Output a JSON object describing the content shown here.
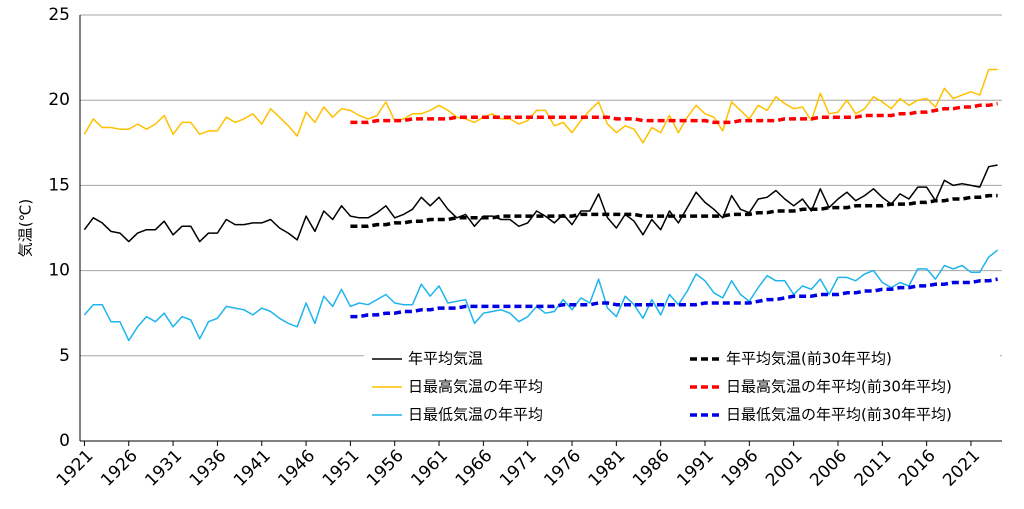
{
  "chart_data": {
    "type": "line",
    "y_label": "気温(℃)",
    "x": [
      1921,
      1922,
      1923,
      1924,
      1925,
      1926,
      1927,
      1928,
      1929,
      1930,
      1931,
      1932,
      1933,
      1934,
      1935,
      1936,
      1937,
      1938,
      1939,
      1940,
      1941,
      1942,
      1943,
      1944,
      1945,
      1946,
      1947,
      1948,
      1949,
      1950,
      1951,
      1952,
      1953,
      1954,
      1955,
      1956,
      1957,
      1958,
      1959,
      1960,
      1961,
      1962,
      1963,
      1964,
      1965,
      1966,
      1967,
      1968,
      1969,
      1970,
      1971,
      1972,
      1973,
      1974,
      1975,
      1976,
      1977,
      1978,
      1979,
      1980,
      1981,
      1982,
      1983,
      1984,
      1985,
      1986,
      1987,
      1988,
      1989,
      1990,
      1991,
      1992,
      1993,
      1994,
      1995,
      1996,
      1997,
      1998,
      1999,
      2000,
      2001,
      2002,
      2003,
      2004,
      2005,
      2006,
      2007,
      2008,
      2009,
      2010,
      2011,
      2012,
      2013,
      2014,
      2015,
      2016,
      2017,
      2018,
      2019,
      2020,
      2021,
      2022,
      2023,
      2024
    ],
    "xlim": [
      1920.5,
      2024.5
    ],
    "xticks": [
      1921,
      1926,
      1931,
      1936,
      1941,
      1946,
      1951,
      1956,
      1961,
      1966,
      1971,
      1976,
      1981,
      1986,
      1991,
      1996,
      2001,
      2006,
      2011,
      2016,
      2021
    ],
    "ylim": [
      0,
      25
    ],
    "yticks": [
      0,
      5,
      10,
      15,
      20,
      25
    ],
    "grid": true,
    "legend": "lower right",
    "series": [
      {
        "name": "年平均気温",
        "color": "#000000",
        "dashed": false,
        "values": [
          12.4,
          13.1,
          12.8,
          12.3,
          12.2,
          11.7,
          12.2,
          12.4,
          12.4,
          12.9,
          12.1,
          12.6,
          12.6,
          11.7,
          12.2,
          12.2,
          13.0,
          12.7,
          12.7,
          12.8,
          12.8,
          13.0,
          12.5,
          12.2,
          11.8,
          13.2,
          12.3,
          13.5,
          13.0,
          13.8,
          13.2,
          13.1,
          13.1,
          13.4,
          13.8,
          13.1,
          13.3,
          13.6,
          14.3,
          13.8,
          14.3,
          13.6,
          13.1,
          13.3,
          12.6,
          13.2,
          13.2,
          13.0,
          13.0,
          12.6,
          12.8,
          13.5,
          13.2,
          12.8,
          13.3,
          12.7,
          13.5,
          13.5,
          14.5,
          13.1,
          12.5,
          13.3,
          12.9,
          12.1,
          13.0,
          12.4,
          13.5,
          12.8,
          13.7,
          14.6,
          14.0,
          13.6,
          13.1,
          14.4,
          13.6,
          13.4,
          14.2,
          14.3,
          14.7,
          14.2,
          13.8,
          14.2,
          13.5,
          14.8,
          13.7,
          14.2,
          14.6,
          14.1,
          14.4,
          14.8,
          14.3,
          13.9,
          14.5,
          14.2,
          14.9,
          14.9,
          14.1,
          15.3,
          15.0,
          15.1,
          15.0,
          14.9,
          16.1,
          16.2
        ]
      },
      {
        "name": "日最高気温の年平均",
        "color": "#ffc000",
        "dashed": false,
        "values": [
          18.0,
          18.9,
          18.4,
          18.4,
          18.3,
          18.3,
          18.6,
          18.3,
          18.6,
          19.1,
          18.0,
          18.7,
          18.7,
          18.0,
          18.2,
          18.2,
          19.0,
          18.7,
          18.9,
          19.2,
          18.6,
          19.5,
          19.0,
          18.5,
          17.9,
          19.3,
          18.7,
          19.6,
          19.0,
          19.5,
          19.4,
          19.1,
          18.9,
          19.1,
          19.9,
          18.8,
          18.9,
          19.2,
          19.2,
          19.4,
          19.7,
          19.4,
          19.0,
          18.9,
          18.7,
          19.0,
          19.2,
          18.9,
          18.9,
          18.6,
          18.8,
          19.4,
          19.4,
          18.5,
          18.7,
          18.1,
          18.8,
          19.4,
          19.9,
          18.6,
          18.1,
          18.5,
          18.3,
          17.5,
          18.4,
          18.1,
          19.1,
          18.1,
          19.0,
          19.7,
          19.2,
          19.0,
          18.2,
          19.9,
          19.4,
          18.9,
          19.7,
          19.4,
          20.2,
          19.8,
          19.5,
          19.6,
          18.8,
          20.4,
          19.2,
          19.3,
          20.0,
          19.2,
          19.5,
          20.2,
          19.9,
          19.5,
          20.1,
          19.7,
          20.0,
          20.1,
          19.6,
          20.7,
          20.1,
          20.3,
          20.5,
          20.3,
          21.8,
          21.8
        ]
      },
      {
        "name": "日最低気温の年平均",
        "color": "#1fb4ec",
        "dashed": false,
        "values": [
          7.4,
          8.0,
          8.0,
          7.0,
          7.0,
          5.9,
          6.7,
          7.3,
          7.0,
          7.5,
          6.7,
          7.3,
          7.1,
          6.0,
          7.0,
          7.2,
          7.9,
          7.8,
          7.7,
          7.4,
          7.8,
          7.6,
          7.2,
          6.9,
          6.7,
          8.1,
          6.9,
          8.5,
          7.9,
          8.9,
          7.9,
          8.1,
          8.0,
          8.3,
          8.6,
          8.1,
          8.0,
          8.0,
          9.2,
          8.5,
          9.1,
          8.1,
          8.2,
          8.3,
          6.9,
          7.5,
          7.6,
          7.7,
          7.5,
          7.0,
          7.3,
          7.9,
          7.5,
          7.6,
          8.3,
          7.7,
          8.4,
          8.1,
          9.5,
          7.8,
          7.3,
          8.5,
          8.0,
          7.2,
          8.3,
          7.4,
          8.6,
          8.0,
          8.8,
          9.8,
          9.4,
          8.7,
          8.4,
          9.4,
          8.6,
          8.2,
          9.0,
          9.7,
          9.4,
          9.4,
          8.6,
          9.1,
          8.9,
          9.5,
          8.6,
          9.6,
          9.6,
          9.4,
          9.8,
          10.0,
          9.3,
          9.0,
          9.3,
          9.1,
          10.1,
          10.1,
          9.5,
          10.3,
          10.1,
          10.3,
          9.9,
          9.9,
          10.8,
          11.2
        ]
      },
      {
        "name": "年平均気温(前30年平均)",
        "color": "#000000",
        "dashed": true,
        "values": [
          null,
          null,
          null,
          null,
          null,
          null,
          null,
          null,
          null,
          null,
          null,
          null,
          null,
          null,
          null,
          null,
          null,
          null,
          null,
          null,
          null,
          null,
          null,
          null,
          null,
          null,
          null,
          null,
          null,
          null,
          12.6,
          12.6,
          12.6,
          12.7,
          12.7,
          12.8,
          12.8,
          12.9,
          12.9,
          13.0,
          13.0,
          13.0,
          13.1,
          13.1,
          13.1,
          13.1,
          13.1,
          13.2,
          13.2,
          13.2,
          13.2,
          13.2,
          13.2,
          13.2,
          13.2,
          13.2,
          13.3,
          13.3,
          13.3,
          13.3,
          13.3,
          13.3,
          13.3,
          13.2,
          13.2,
          13.2,
          13.2,
          13.2,
          13.2,
          13.2,
          13.2,
          13.2,
          13.2,
          13.3,
          13.3,
          13.3,
          13.4,
          13.4,
          13.5,
          13.5,
          13.5,
          13.6,
          13.6,
          13.6,
          13.7,
          13.7,
          13.7,
          13.8,
          13.8,
          13.8,
          13.8,
          13.9,
          13.9,
          13.9,
          14.0,
          14.0,
          14.1,
          14.1,
          14.2,
          14.2,
          14.3,
          14.3,
          14.4,
          14.4
        ]
      },
      {
        "name": "日最高気温の年平均(前30年平均)",
        "color": "#ff0000",
        "dashed": true,
        "values": [
          null,
          null,
          null,
          null,
          null,
          null,
          null,
          null,
          null,
          null,
          null,
          null,
          null,
          null,
          null,
          null,
          null,
          null,
          null,
          null,
          null,
          null,
          null,
          null,
          null,
          null,
          null,
          null,
          null,
          null,
          18.7,
          18.7,
          18.7,
          18.8,
          18.8,
          18.8,
          18.8,
          18.9,
          18.9,
          18.9,
          18.9,
          18.9,
          19.0,
          19.0,
          19.0,
          19.0,
          19.0,
          19.0,
          19.0,
          19.0,
          19.0,
          19.0,
          19.0,
          19.0,
          19.0,
          19.0,
          19.0,
          19.0,
          19.0,
          19.0,
          18.9,
          18.9,
          18.9,
          18.8,
          18.8,
          18.8,
          18.8,
          18.8,
          18.8,
          18.8,
          18.8,
          18.7,
          18.7,
          18.7,
          18.8,
          18.8,
          18.8,
          18.8,
          18.8,
          18.9,
          18.9,
          18.9,
          18.9,
          19.0,
          19.0,
          19.0,
          19.0,
          19.0,
          19.1,
          19.1,
          19.1,
          19.1,
          19.2,
          19.2,
          19.3,
          19.3,
          19.4,
          19.5,
          19.5,
          19.6,
          19.6,
          19.7,
          19.7,
          19.8
        ]
      },
      {
        "name": "日最低気温の年平均(前30年平均)",
        "color": "#0000e6",
        "dashed": true,
        "values": [
          null,
          null,
          null,
          null,
          null,
          null,
          null,
          null,
          null,
          null,
          null,
          null,
          null,
          null,
          null,
          null,
          null,
          null,
          null,
          null,
          null,
          null,
          null,
          null,
          null,
          null,
          null,
          null,
          null,
          null,
          7.3,
          7.3,
          7.4,
          7.4,
          7.5,
          7.5,
          7.6,
          7.6,
          7.7,
          7.7,
          7.8,
          7.8,
          7.8,
          7.9,
          7.9,
          7.9,
          7.9,
          7.9,
          7.9,
          7.9,
          7.9,
          7.9,
          7.9,
          7.9,
          8.0,
          8.0,
          8.0,
          8.0,
          8.1,
          8.1,
          8.0,
          8.0,
          8.0,
          8.0,
          8.0,
          8.0,
          8.0,
          8.0,
          8.0,
          8.0,
          8.1,
          8.1,
          8.1,
          8.1,
          8.1,
          8.1,
          8.2,
          8.3,
          8.3,
          8.4,
          8.5,
          8.5,
          8.5,
          8.6,
          8.6,
          8.6,
          8.7,
          8.7,
          8.8,
          8.8,
          8.9,
          8.9,
          9.0,
          9.0,
          9.1,
          9.1,
          9.2,
          9.2,
          9.3,
          9.3,
          9.3,
          9.4,
          9.4,
          9.5
        ]
      }
    ]
  }
}
